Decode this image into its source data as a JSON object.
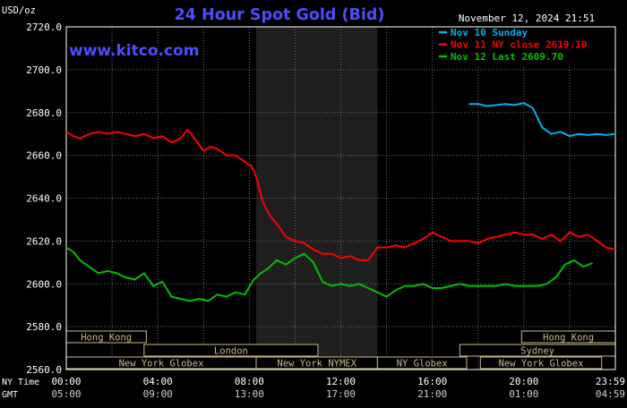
{
  "header": {
    "unit": "USD/oz",
    "title": "24 Hour Spot Gold (Bid)",
    "datetime": "November 12, 2024 21:51",
    "site": "www.kitco.com"
  },
  "colors": {
    "background": "#000000",
    "plot_background": "#000000",
    "night_band": "#1f1f1f",
    "grid": "#707070",
    "axis_text": "#ffffff",
    "title": "#4d4dff",
    "site": "#4d4dff",
    "market_bar_fill": "#000000",
    "market_bar_border": "#c8b88a",
    "market_bar_text": "#c8b88a",
    "nov10": "#00b0f0",
    "nov11": "#ff0000",
    "nov12": "#00c000"
  },
  "chart_data": {
    "type": "line",
    "title": "24 Hour Spot Gold (Bid)",
    "ylabel": "USD/oz",
    "xlabel": "",
    "ylim": [
      2560,
      2720
    ],
    "yticks": [
      2560,
      2580,
      2600,
      2620,
      2640,
      2660,
      2680,
      2700,
      2720
    ],
    "ytick_labels": [
      "2560.0",
      "2580.0",
      "2600.0",
      "2620.0",
      "2640.0",
      "2660.0",
      "2680.0",
      "2700.0",
      "2720.0"
    ],
    "xlim": [
      0,
      24
    ],
    "xticks": [
      0,
      4,
      8,
      12,
      16,
      20,
      24
    ],
    "grid": true,
    "legend_position": "top-right",
    "x_axis_rows": [
      {
        "label": "NY Time",
        "ticks": [
          "00:00",
          "04:00",
          "08:00",
          "12:00",
          "16:00",
          "20:00",
          "23:59"
        ]
      },
      {
        "label": "GMT",
        "ticks": [
          "05:00",
          "09:00",
          "13:00",
          "17:00",
          "21:00",
          "01:00",
          "04:59"
        ]
      }
    ],
    "shaded_region_hours": [
      8.3,
      13.6
    ],
    "market_sessions": [
      {
        "name": "Hong Kong",
        "row": 0,
        "start": 0,
        "end": 3.5
      },
      {
        "name": "Hong Kong",
        "row": 0,
        "start": 19.9,
        "end": 24
      },
      {
        "name": "London",
        "row": 1,
        "start": 3.4,
        "end": 11.0
      },
      {
        "name": "Sydney",
        "row": 1,
        "start": 17.2,
        "end": 24
      },
      {
        "name": "New York Globex",
        "row": 2,
        "start": 0,
        "end": 8.3
      },
      {
        "name": "New York NYMEX",
        "row": 2,
        "start": 8.3,
        "end": 13.6
      },
      {
        "name": "NY Globex",
        "row": 2,
        "start": 13.6,
        "end": 17.5
      },
      {
        "name": "New York Globex",
        "row": 2,
        "start": 18.1,
        "end": 23.4
      }
    ],
    "series": [
      {
        "name": "Nov 10 Sunday",
        "color": "#00b0f0",
        "x": [
          17.6,
          18.0,
          18.4,
          18.8,
          19.2,
          19.6,
          20.0,
          20.4,
          20.8,
          21.2,
          21.6,
          22.0,
          22.4,
          22.8,
          23.2,
          23.6,
          24.0
        ],
        "y": [
          2684,
          2684,
          2683,
          2683.5,
          2684,
          2683.5,
          2684.5,
          2682,
          2673,
          2670,
          2671,
          2669,
          2670,
          2669.5,
          2670,
          2669.5,
          2670
        ]
      },
      {
        "name": "Nov 11 NY close 2619.10",
        "color": "#ff0000",
        "x": [
          0,
          0.3,
          0.6,
          1.0,
          1.4,
          1.8,
          2.2,
          2.6,
          3.0,
          3.4,
          3.8,
          4.2,
          4.6,
          5.0,
          5.3,
          5.6,
          6.0,
          6.3,
          6.6,
          7.0,
          7.4,
          7.8,
          8.1,
          8.3,
          8.6,
          8.9,
          9.2,
          9.6,
          10.0,
          10.4,
          10.8,
          11.2,
          11.6,
          12.0,
          12.4,
          12.8,
          13.2,
          13.6,
          14.0,
          14.4,
          14.8,
          15.2,
          15.6,
          16.0,
          16.4,
          16.8,
          17.2,
          17.6,
          18.0,
          18.4,
          18.8,
          19.2,
          19.6,
          20.0,
          20.4,
          20.8,
          21.2,
          21.6,
          22.0,
          22.4,
          22.8,
          23.2,
          23.6,
          24.0
        ],
        "y": [
          2671,
          2669,
          2668,
          2670,
          2671,
          2670,
          2671,
          2670,
          2669,
          2670,
          2668,
          2669,
          2666,
          2668,
          2672,
          2668,
          2662,
          2664,
          2663,
          2660,
          2660,
          2657,
          2655,
          2650,
          2638,
          2632,
          2628,
          2622,
          2620,
          2619,
          2616,
          2614,
          2614,
          2612,
          2613,
          2611,
          2611,
          2617,
          2617,
          2618,
          2617,
          2619,
          2621,
          2624,
          2622,
          2620,
          2620,
          2620,
          2619,
          2621,
          2622,
          2623,
          2624,
          2623,
          2623,
          2621,
          2623,
          2620,
          2624,
          2622,
          2623,
          2620,
          2617,
          2616
        ]
      },
      {
        "name": "Nov 12 Last 2609.70",
        "color": "#00c000",
        "x": [
          0,
          0.3,
          0.6,
          1.0,
          1.4,
          1.8,
          2.2,
          2.6,
          3.0,
          3.4,
          3.8,
          4.2,
          4.6,
          5.0,
          5.4,
          5.8,
          6.2,
          6.6,
          7.0,
          7.4,
          7.8,
          8.2,
          8.5,
          8.8,
          9.2,
          9.6,
          10.0,
          10.4,
          10.8,
          11.2,
          11.6,
          12.0,
          12.4,
          12.8,
          13.2,
          13.6,
          14.0,
          14.4,
          14.8,
          15.2,
          15.6,
          16.0,
          16.4,
          16.8,
          17.2,
          17.6,
          18.0,
          18.4,
          18.8,
          19.2,
          19.6,
          20.0,
          20.3,
          20.6,
          21.0,
          21.4,
          21.8,
          22.2,
          22.6,
          23.0
        ],
        "y": [
          2617,
          2615,
          2611,
          2608,
          2605,
          2606,
          2605,
          2603,
          2602,
          2605,
          2599,
          2601,
          2594,
          2593,
          2592,
          2593,
          2592,
          2595,
          2594,
          2596,
          2595,
          2602,
          2605,
          2607,
          2611,
          2609,
          2612,
          2614,
          2610,
          2601,
          2599,
          2600,
          2599,
          2600,
          2598,
          2596,
          2594,
          2597,
          2599,
          2599,
          2600,
          2598,
          2598,
          2599,
          2600,
          2599,
          2599,
          2599,
          2599,
          2600,
          2599,
          2599,
          2599,
          2599,
          2600,
          2603,
          2609,
          2611,
          2608,
          2609.7
        ]
      }
    ]
  }
}
